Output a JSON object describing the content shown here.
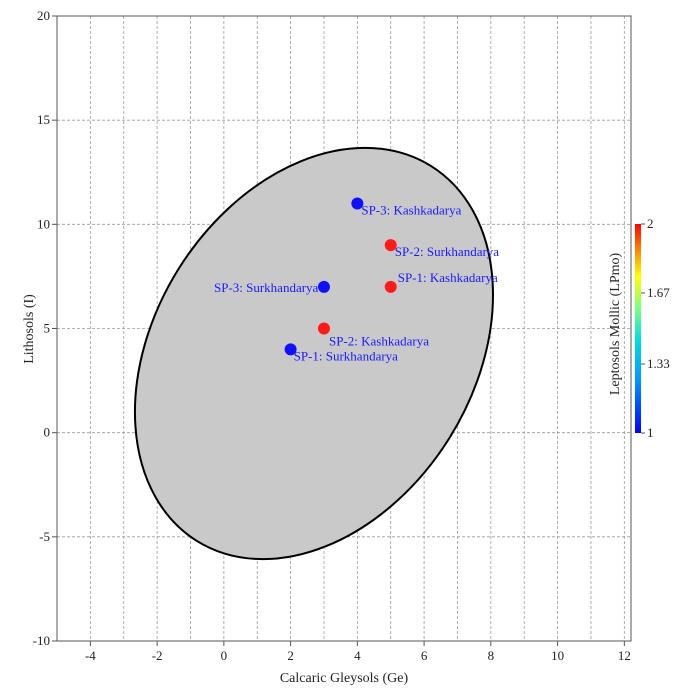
{
  "chart_data": {
    "type": "scatter",
    "xlabel": "Calcaric Gleysols (Ge)",
    "ylabel": "Lithosols (I)",
    "xlim": [
      -5,
      12.2
    ],
    "ylim": [
      -10,
      20
    ],
    "xticks": [
      -4,
      -2,
      0,
      2,
      4,
      6,
      8,
      10,
      12
    ],
    "yticks": [
      -10,
      -5,
      0,
      5,
      10,
      15,
      20
    ],
    "grid": "dashed",
    "ellipse": {
      "center": [
        2.7,
        3.8
      ],
      "semi_axis_major": 10.4,
      "semi_axis_minor": 4.6,
      "note": "confidence ellipse, gray fill"
    },
    "colorbar": {
      "label": "Leptosols Mollic (LPmo)",
      "min": 1,
      "max": 2,
      "ticks": [
        "1",
        "1.33",
        "1.67",
        "2"
      ],
      "colors": [
        "#0000ff",
        "#00c8ff",
        "#ffff00",
        "#ff0000"
      ]
    },
    "points": [
      {
        "label": "SP-1: Surkhandarya",
        "x": 2,
        "y": 4,
        "value": 1
      },
      {
        "label": "SP-2: Kashkadarya",
        "x": 3,
        "y": 5,
        "value": 2
      },
      {
        "label": "SP-3: Surkhandarya",
        "x": 3,
        "y": 7,
        "value": 1
      },
      {
        "label": "SP-1: Kashkadarya",
        "x": 5,
        "y": 7,
        "value": 2
      },
      {
        "label": "SP-2: Surkhandarya",
        "x": 5,
        "y": 9,
        "value": 2
      },
      {
        "label": "SP-3: Kashkadarya",
        "x": 4,
        "y": 11,
        "value": 1
      }
    ]
  }
}
